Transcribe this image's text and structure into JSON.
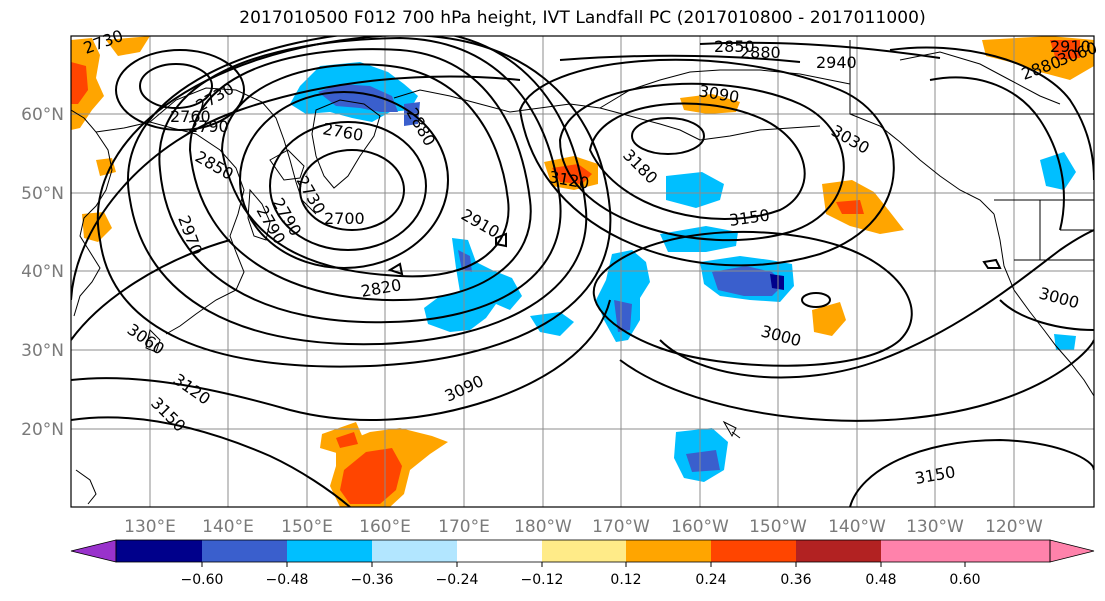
{
  "title": "2017010500 F012 700 hPa height, IVT Landfall PC (2017010800 - 2017011000)",
  "map": {
    "lat_ticks": [
      "60°N",
      "50°N",
      "40°N",
      "30°N",
      "20°N"
    ],
    "lon_ticks": [
      "130°E",
      "140°E",
      "150°E",
      "160°E",
      "170°E",
      "180°W",
      "170°W",
      "160°W",
      "150°W",
      "140°W",
      "130°W",
      "120°W"
    ],
    "contour_labels": [
      "2730",
      "2730",
      "2760",
      "2790",
      "2850",
      "2760",
      "2880",
      "2730",
      "2790",
      "2700",
      "2970",
      "2790",
      "2910",
      "2820",
      "3060",
      "3120",
      "3150",
      "3090",
      "2850",
      "2880",
      "2940",
      "3090",
      "3030",
      "3180",
      "3120",
      "3150",
      "3000",
      "3000",
      "3150",
      "2880",
      "2910",
      "3060"
    ],
    "coast_color": "#000000",
    "contour_color": "#000000",
    "grid_color": "#8c8c8c"
  },
  "colorbar": {
    "ticks": [
      "−0.60",
      "−0.48",
      "−0.36",
      "−0.24",
      "−0.12",
      "0.12",
      "0.24",
      "0.36",
      "0.48",
      "0.60"
    ],
    "colors": [
      "#9932cc",
      "#00008b",
      "#3a5fcd",
      "#00bfff",
      "#b2e6ff",
      "#ffffff",
      "#ffeb88",
      "#ffa500",
      "#ff4500",
      "#b22222",
      "#ff82ab",
      "#ff82ab"
    ],
    "min_color": "#9932cc",
    "max_color": "#ff82ab"
  }
}
